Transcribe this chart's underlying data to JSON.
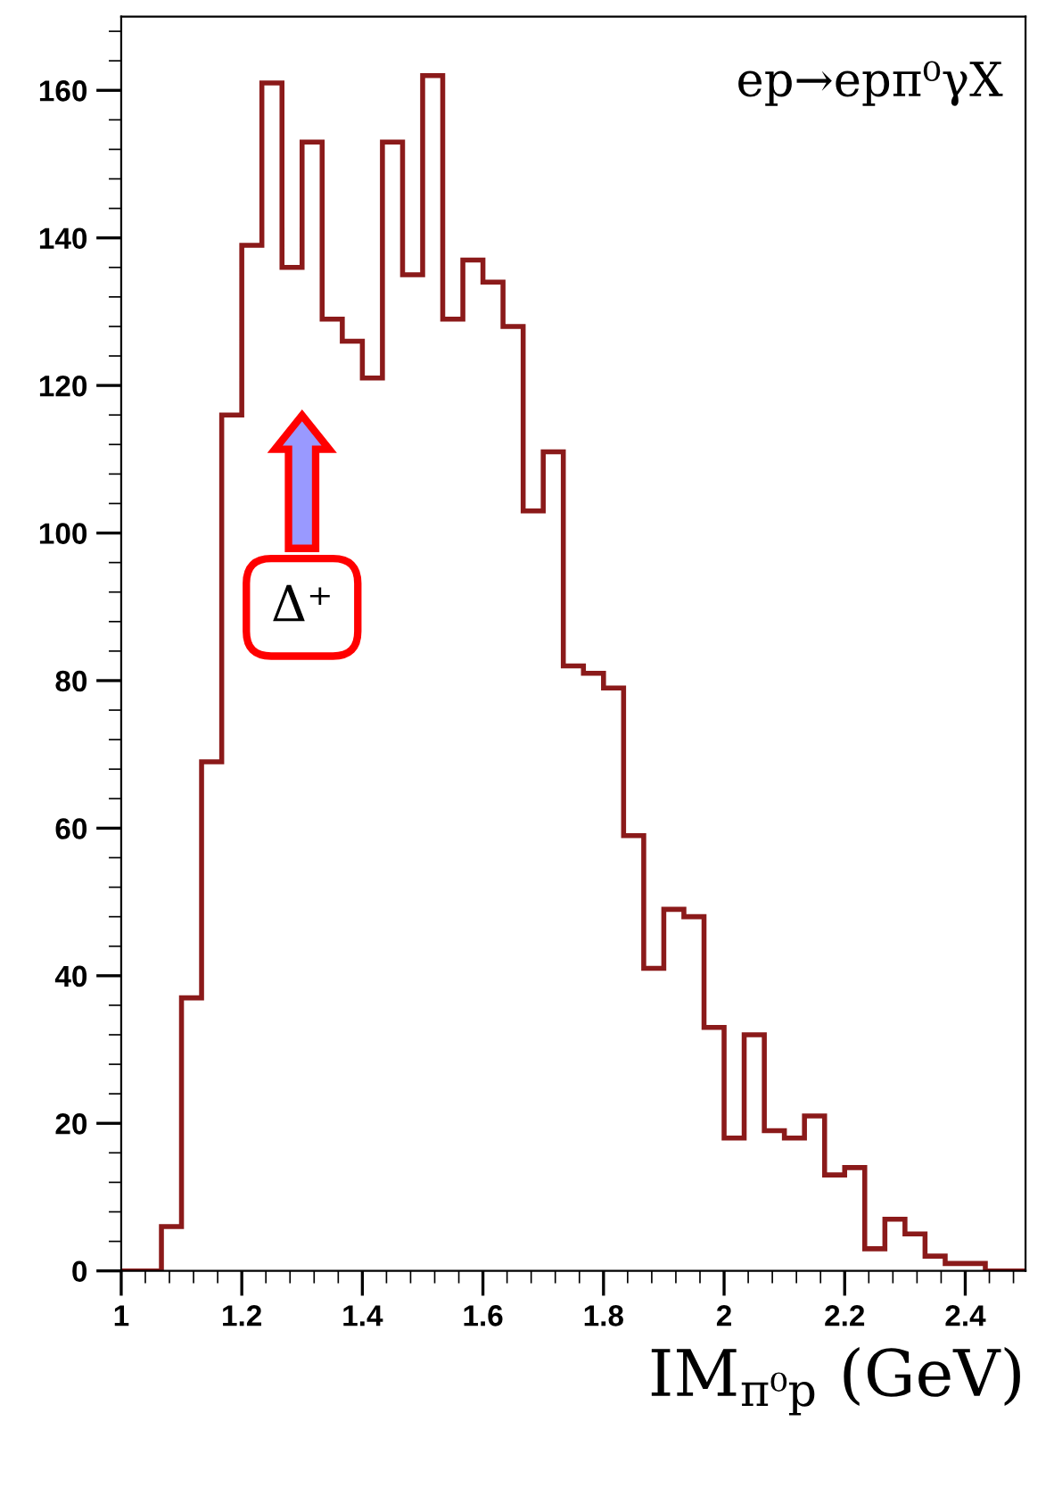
{
  "chart_data": {
    "type": "histogram",
    "bins": [
      1.0,
      1.0333,
      1.0667,
      1.1,
      1.1333,
      1.1667,
      1.2,
      1.2333,
      1.2667,
      1.3,
      1.3333,
      1.3667,
      1.4,
      1.4333,
      1.4667,
      1.5,
      1.5333,
      1.5667,
      1.6,
      1.6333,
      1.6667,
      1.7,
      1.7333,
      1.7667,
      1.8,
      1.8333,
      1.8667,
      1.9,
      1.9333,
      1.9667,
      2.0,
      2.0333,
      2.0667,
      2.1,
      2.1333,
      2.1667,
      2.2,
      2.2333,
      2.2667,
      2.3,
      2.3333,
      2.3667,
      2.4,
      2.4333,
      2.4667,
      2.5
    ],
    "values": [
      0,
      0,
      6,
      37,
      69,
      116,
      139,
      161,
      136,
      153,
      129,
      126,
      121,
      153,
      135,
      162,
      129,
      137,
      134,
      128,
      103,
      111,
      82,
      81,
      79,
      59,
      41,
      49,
      48,
      33,
      18,
      32,
      19,
      18,
      21,
      13,
      14,
      3,
      7,
      5,
      2,
      1,
      1,
      0,
      0
    ],
    "color": "#8b1a1a",
    "xlabel": "IM$_{π⁰p}$ (GeV)",
    "xlim": [
      1,
      2.5
    ],
    "ylim": [
      0,
      170
    ],
    "xticks": [
      1,
      1.2,
      1.4,
      1.6,
      1.8,
      2,
      2.2,
      2.4
    ],
    "yticks": [
      0,
      20,
      40,
      60,
      80,
      100,
      120,
      140,
      160
    ],
    "grid": false,
    "annotations": [
      "ep→epπ⁰γX",
      "Δ⁺"
    ]
  }
}
